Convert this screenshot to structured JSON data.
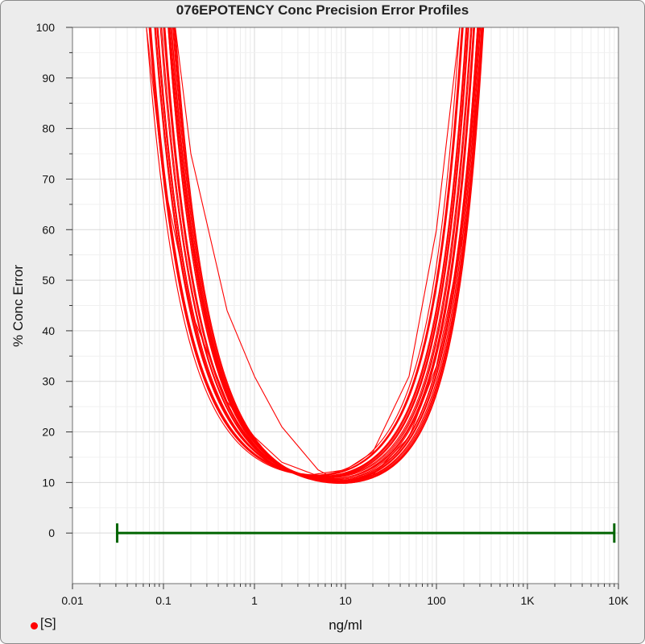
{
  "chart_data": {
    "type": "line",
    "title": "076EPOTENCY Conc Precision Error Profiles",
    "xlabel": "ng/ml",
    "ylabel": "% Conc Error",
    "x_scale": "log",
    "xlim": [
      0.01,
      10000
    ],
    "ylim": [
      -10,
      100
    ],
    "x_ticks": [
      0.01,
      0.1,
      1,
      10,
      100,
      1000,
      10000
    ],
    "x_tick_labels": [
      "0.01",
      "0.1",
      "1",
      "10",
      "100",
      "1K",
      "10K"
    ],
    "y_ticks": [
      0,
      10,
      20,
      30,
      40,
      50,
      60,
      70,
      80,
      90,
      100
    ],
    "y_tick_labels": [
      "0",
      "10",
      "20",
      "30",
      "40",
      "50",
      "60",
      "70",
      "80",
      "90",
      "100"
    ],
    "grid": true,
    "legend": {
      "position": "bottom-left",
      "label": "[S]"
    },
    "colors": {
      "profiles": "#ff0000",
      "range_bar": "#006400",
      "grid": "#d9d9d9"
    },
    "profile_shape": {
      "curve_count": 30,
      "min_error_range": [
        9.8,
        11.6
      ],
      "min_conc_range": [
        4.5,
        9.5
      ],
      "left_100pct_conc_range": [
        0.065,
        0.135
      ],
      "right_100pct_conc_range": [
        180,
        330
      ]
    },
    "series": [
      {
        "x": [
          0.065,
          0.1,
          0.2,
          0.5,
          1,
          2,
          4.5,
          10,
          20,
          50,
          100,
          180
        ],
        "y": [
          100,
          70,
          44,
          26,
          19,
          14,
          11.6,
          12.5,
          16,
          31,
          60,
          100
        ]
      },
      {
        "x": [
          0.135,
          0.2,
          0.5,
          1,
          2,
          5,
          9.5,
          20,
          50,
          100,
          200,
          330
        ],
        "y": [
          100,
          75,
          44,
          31,
          21,
          12.5,
          9.8,
          11.5,
          19,
          33,
          60,
          100
        ]
      }
    ],
    "range_bar": {
      "y": 0,
      "x_start": 0.031,
      "x_end": 9000
    }
  }
}
